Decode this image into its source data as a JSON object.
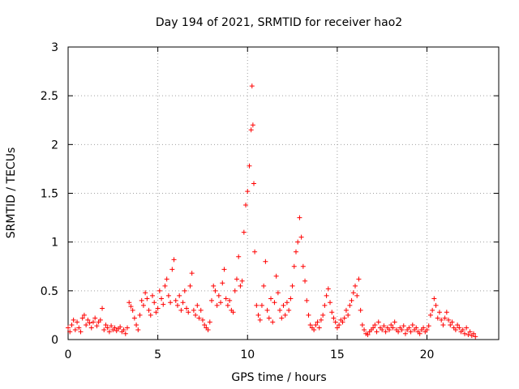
{
  "chart_data": {
    "type": "scatter",
    "title": "Day 194 of 2021, SRMTID for receiver hao2",
    "xlabel": "GPS time / hours",
    "ylabel": "SRMTID / TECUs",
    "xlim": [
      0,
      24
    ],
    "ylim": [
      0,
      3
    ],
    "xticks": [
      0,
      5,
      10,
      15,
      20
    ],
    "xtick_labels": [
      "0",
      "5",
      "10",
      "15",
      "20"
    ],
    "yticks": [
      0,
      0.5,
      1,
      1.5,
      2,
      2.5,
      3
    ],
    "ytick_labels": [
      "0",
      "0.5",
      "1",
      "1.5",
      "2",
      "2.5",
      "3"
    ],
    "grid": true,
    "marker": "+",
    "color": "#ff0000",
    "series": [
      {
        "name": "SRMTID",
        "points": [
          [
            0.0,
            0.12
          ],
          [
            0.1,
            0.08
          ],
          [
            0.2,
            0.15
          ],
          [
            0.3,
            0.2
          ],
          [
            0.4,
            0.1
          ],
          [
            0.5,
            0.18
          ],
          [
            0.6,
            0.12
          ],
          [
            0.7,
            0.08
          ],
          [
            0.8,
            0.22
          ],
          [
            0.9,
            0.25
          ],
          [
            1.0,
            0.15
          ],
          [
            1.1,
            0.2
          ],
          [
            1.2,
            0.17
          ],
          [
            1.3,
            0.12
          ],
          [
            1.4,
            0.18
          ],
          [
            1.5,
            0.22
          ],
          [
            1.6,
            0.14
          ],
          [
            1.7,
            0.18
          ],
          [
            1.8,
            0.2
          ],
          [
            1.9,
            0.32
          ],
          [
            2.0,
            0.1
          ],
          [
            2.1,
            0.15
          ],
          [
            2.2,
            0.12
          ],
          [
            2.3,
            0.08
          ],
          [
            2.4,
            0.14
          ],
          [
            2.5,
            0.1
          ],
          [
            2.6,
            0.12
          ],
          [
            2.7,
            0.09
          ],
          [
            2.8,
            0.11
          ],
          [
            2.9,
            0.13
          ],
          [
            3.0,
            0.08
          ],
          [
            3.1,
            0.1
          ],
          [
            3.2,
            0.06
          ],
          [
            3.3,
            0.12
          ],
          [
            3.4,
            0.38
          ],
          [
            3.5,
            0.34
          ],
          [
            3.6,
            0.3
          ],
          [
            3.7,
            0.22
          ],
          [
            3.8,
            0.15
          ],
          [
            3.9,
            0.1
          ],
          [
            4.0,
            0.25
          ],
          [
            4.1,
            0.4
          ],
          [
            4.2,
            0.35
          ],
          [
            4.3,
            0.48
          ],
          [
            4.4,
            0.42
          ],
          [
            4.5,
            0.3
          ],
          [
            4.6,
            0.25
          ],
          [
            4.7,
            0.45
          ],
          [
            4.8,
            0.38
          ],
          [
            4.9,
            0.28
          ],
          [
            5.0,
            0.32
          ],
          [
            5.1,
            0.5
          ],
          [
            5.2,
            0.42
          ],
          [
            5.3,
            0.36
          ],
          [
            5.4,
            0.55
          ],
          [
            5.5,
            0.62
          ],
          [
            5.6,
            0.45
          ],
          [
            5.7,
            0.38
          ],
          [
            5.8,
            0.72
          ],
          [
            5.9,
            0.82
          ],
          [
            6.0,
            0.4
          ],
          [
            6.1,
            0.35
          ],
          [
            6.2,
            0.45
          ],
          [
            6.3,
            0.3
          ],
          [
            6.4,
            0.38
          ],
          [
            6.5,
            0.5
          ],
          [
            6.6,
            0.32
          ],
          [
            6.7,
            0.28
          ],
          [
            6.8,
            0.55
          ],
          [
            6.9,
            0.68
          ],
          [
            7.0,
            0.3
          ],
          [
            7.1,
            0.25
          ],
          [
            7.2,
            0.35
          ],
          [
            7.3,
            0.22
          ],
          [
            7.4,
            0.3
          ],
          [
            7.5,
            0.2
          ],
          [
            7.6,
            0.15
          ],
          [
            7.7,
            0.12
          ],
          [
            7.8,
            0.1
          ],
          [
            7.9,
            0.18
          ],
          [
            8.0,
            0.4
          ],
          [
            8.1,
            0.55
          ],
          [
            8.2,
            0.5
          ],
          [
            8.3,
            0.35
          ],
          [
            8.4,
            0.45
          ],
          [
            8.5,
            0.38
          ],
          [
            8.6,
            0.58
          ],
          [
            8.7,
            0.72
          ],
          [
            8.8,
            0.42
          ],
          [
            8.9,
            0.35
          ],
          [
            9.0,
            0.4
          ],
          [
            9.1,
            0.3
          ],
          [
            9.2,
            0.28
          ],
          [
            9.3,
            0.5
          ],
          [
            9.4,
            0.62
          ],
          [
            9.5,
            0.85
          ],
          [
            9.6,
            0.55
          ],
          [
            9.7,
            0.6
          ],
          [
            9.8,
            1.1
          ],
          [
            9.9,
            1.38
          ],
          [
            10.0,
            1.52
          ],
          [
            10.1,
            1.78
          ],
          [
            10.2,
            2.15
          ],
          [
            10.25,
            2.6
          ],
          [
            10.3,
            2.2
          ],
          [
            10.35,
            1.6
          ],
          [
            10.4,
            0.9
          ],
          [
            10.5,
            0.35
          ],
          [
            10.6,
            0.25
          ],
          [
            10.7,
            0.2
          ],
          [
            10.8,
            0.35
          ],
          [
            10.9,
            0.55
          ],
          [
            11.0,
            0.8
          ],
          [
            11.1,
            0.3
          ],
          [
            11.2,
            0.22
          ],
          [
            11.3,
            0.42
          ],
          [
            11.4,
            0.18
          ],
          [
            11.5,
            0.38
          ],
          [
            11.6,
            0.65
          ],
          [
            11.7,
            0.48
          ],
          [
            11.8,
            0.3
          ],
          [
            11.9,
            0.22
          ],
          [
            12.0,
            0.35
          ],
          [
            12.1,
            0.25
          ],
          [
            12.2,
            0.38
          ],
          [
            12.3,
            0.3
          ],
          [
            12.4,
            0.42
          ],
          [
            12.5,
            0.55
          ],
          [
            12.6,
            0.75
          ],
          [
            12.7,
            0.9
          ],
          [
            12.8,
            1.0
          ],
          [
            12.9,
            1.25
          ],
          [
            13.0,
            1.05
          ],
          [
            13.1,
            0.75
          ],
          [
            13.2,
            0.6
          ],
          [
            13.3,
            0.4
          ],
          [
            13.4,
            0.25
          ],
          [
            13.5,
            0.15
          ],
          [
            13.6,
            0.12
          ],
          [
            13.7,
            0.1
          ],
          [
            13.8,
            0.15
          ],
          [
            13.9,
            0.18
          ],
          [
            14.0,
            0.12
          ],
          [
            14.1,
            0.2
          ],
          [
            14.2,
            0.25
          ],
          [
            14.3,
            0.35
          ],
          [
            14.4,
            0.45
          ],
          [
            14.5,
            0.52
          ],
          [
            14.6,
            0.38
          ],
          [
            14.7,
            0.28
          ],
          [
            14.8,
            0.22
          ],
          [
            14.9,
            0.18
          ],
          [
            15.0,
            0.12
          ],
          [
            15.1,
            0.15
          ],
          [
            15.2,
            0.2
          ],
          [
            15.3,
            0.18
          ],
          [
            15.4,
            0.22
          ],
          [
            15.5,
            0.3
          ],
          [
            15.6,
            0.25
          ],
          [
            15.7,
            0.35
          ],
          [
            15.8,
            0.4
          ],
          [
            15.9,
            0.48
          ],
          [
            16.0,
            0.55
          ],
          [
            16.1,
            0.45
          ],
          [
            16.2,
            0.62
          ],
          [
            16.3,
            0.3
          ],
          [
            16.4,
            0.15
          ],
          [
            16.5,
            0.1
          ],
          [
            16.6,
            0.06
          ],
          [
            16.7,
            0.05
          ],
          [
            16.8,
            0.08
          ],
          [
            16.9,
            0.1
          ],
          [
            17.0,
            0.12
          ],
          [
            17.1,
            0.15
          ],
          [
            17.2,
            0.08
          ],
          [
            17.3,
            0.18
          ],
          [
            17.4,
            0.12
          ],
          [
            17.5,
            0.1
          ],
          [
            17.6,
            0.14
          ],
          [
            17.7,
            0.08
          ],
          [
            17.8,
            0.12
          ],
          [
            17.9,
            0.1
          ],
          [
            18.0,
            0.15
          ],
          [
            18.1,
            0.12
          ],
          [
            18.2,
            0.18
          ],
          [
            18.3,
            0.1
          ],
          [
            18.4,
            0.08
          ],
          [
            18.5,
            0.12
          ],
          [
            18.6,
            0.1
          ],
          [
            18.7,
            0.14
          ],
          [
            18.8,
            0.06
          ],
          [
            18.9,
            0.1
          ],
          [
            19.0,
            0.12
          ],
          [
            19.1,
            0.08
          ],
          [
            19.2,
            0.15
          ],
          [
            19.3,
            0.1
          ],
          [
            19.4,
            0.12
          ],
          [
            19.5,
            0.08
          ],
          [
            19.6,
            0.06
          ],
          [
            19.7,
            0.1
          ],
          [
            19.8,
            0.12
          ],
          [
            19.9,
            0.08
          ],
          [
            20.0,
            0.1
          ],
          [
            20.1,
            0.14
          ],
          [
            20.2,
            0.25
          ],
          [
            20.3,
            0.3
          ],
          [
            20.4,
            0.42
          ],
          [
            20.5,
            0.35
          ],
          [
            20.6,
            0.22
          ],
          [
            20.7,
            0.28
          ],
          [
            20.8,
            0.2
          ],
          [
            20.9,
            0.15
          ],
          [
            21.0,
            0.22
          ],
          [
            21.1,
            0.28
          ],
          [
            21.2,
            0.2
          ],
          [
            21.3,
            0.15
          ],
          [
            21.4,
            0.18
          ],
          [
            21.5,
            0.12
          ],
          [
            21.6,
            0.1
          ],
          [
            21.7,
            0.15
          ],
          [
            21.8,
            0.12
          ],
          [
            21.9,
            0.08
          ],
          [
            22.0,
            0.1
          ],
          [
            22.1,
            0.06
          ],
          [
            22.2,
            0.12
          ],
          [
            22.3,
            0.05
          ],
          [
            22.4,
            0.08
          ],
          [
            22.5,
            0.04
          ],
          [
            22.6,
            0.06
          ],
          [
            22.7,
            0.03
          ]
        ]
      }
    ]
  }
}
